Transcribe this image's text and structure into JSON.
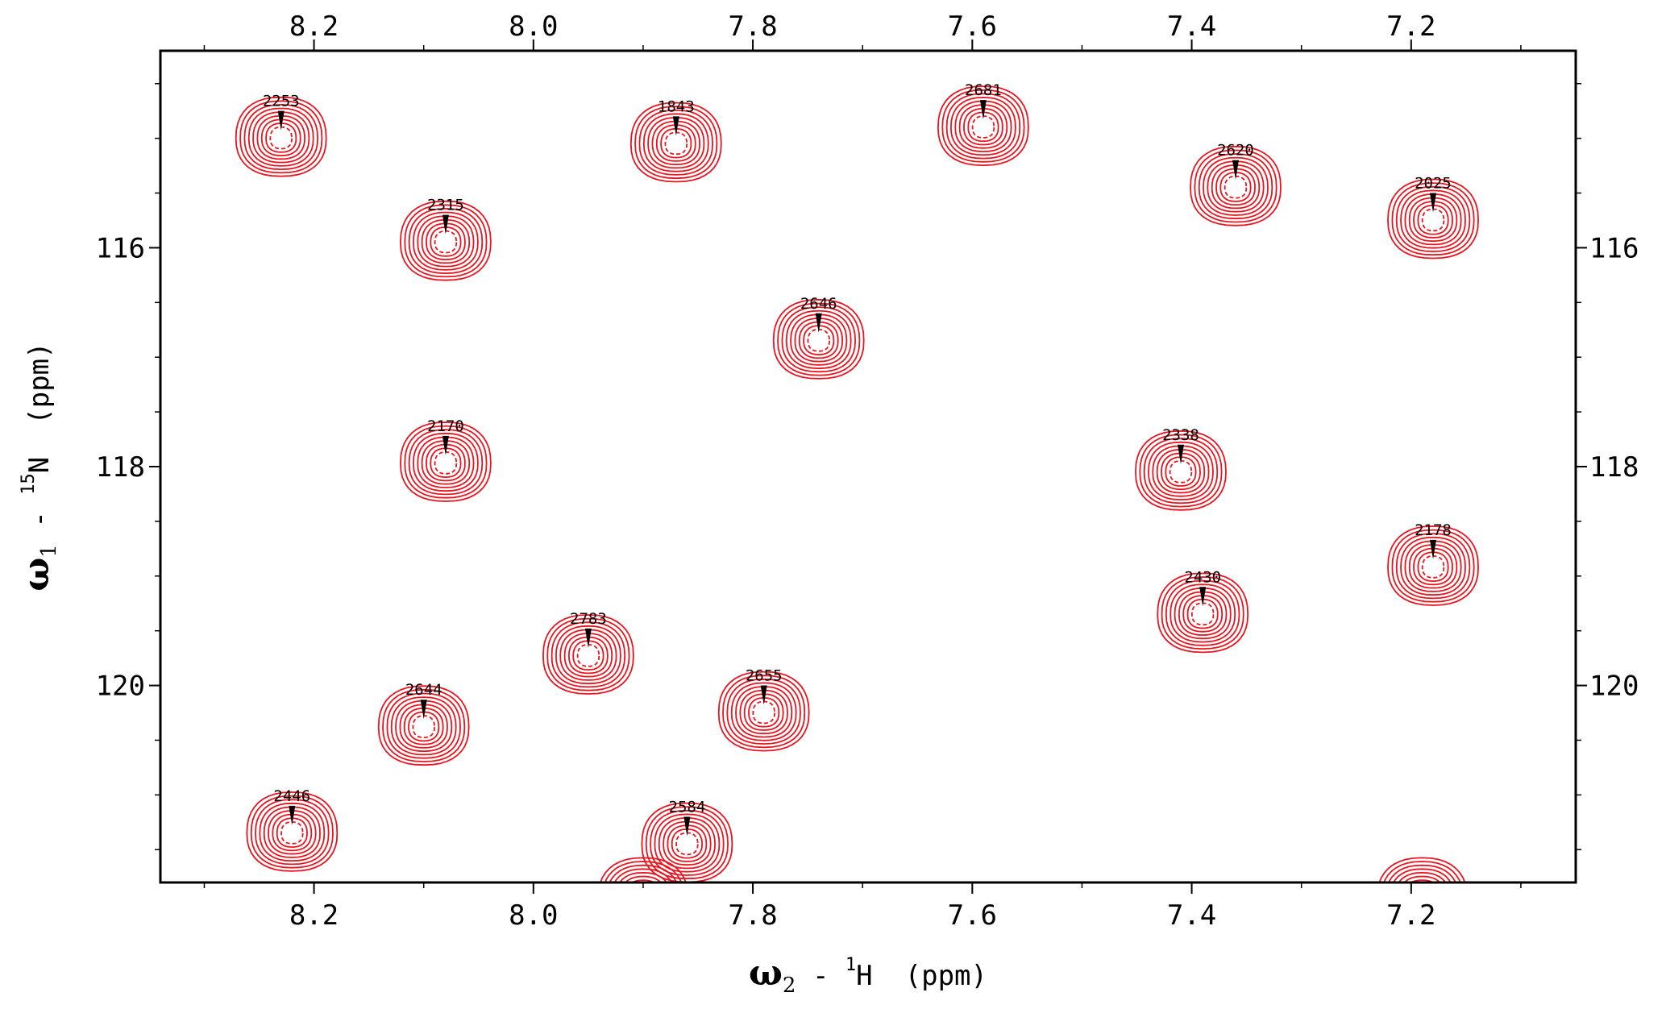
{
  "chart_data": {
    "type": "scatter",
    "subtype": "2D NMR HSQC contour spectrum",
    "x_axis": {
      "greek": "ω",
      "sub": "2",
      "dash": " - ",
      "sup": "1",
      "nucleus": "H",
      "unit": "(ppm)",
      "range": [
        8.34,
        7.05
      ],
      "reversed": true,
      "ticks": [
        8.2,
        8.0,
        7.8,
        7.6,
        7.4,
        7.2
      ],
      "tick_labels": [
        "8.2",
        "8.0",
        "7.8",
        "7.6",
        "7.4",
        "7.2"
      ]
    },
    "y_axis": {
      "greek": "ω",
      "sub": "1",
      "dash": " - ",
      "sup": "15",
      "nucleus": "N",
      "unit": "(ppm)",
      "range": [
        114.2,
        121.8
      ],
      "reversed": true,
      "ticks": [
        116,
        118,
        120
      ],
      "tick_labels": [
        "116",
        "118",
        "120"
      ]
    },
    "contour_color": "#e8141e",
    "peaks": [
      {
        "label": "2253",
        "x": 8.23,
        "y": 115.0
      },
      {
        "label": "1843",
        "x": 7.87,
        "y": 115.05
      },
      {
        "label": "2681",
        "x": 7.59,
        "y": 114.9
      },
      {
        "label": "2620",
        "x": 7.36,
        "y": 115.45
      },
      {
        "label": "2025",
        "x": 7.18,
        "y": 115.75
      },
      {
        "label": "2315",
        "x": 8.08,
        "y": 115.95
      },
      {
        "label": "2646",
        "x": 7.74,
        "y": 116.85
      },
      {
        "label": "2170",
        "x": 8.08,
        "y": 117.97
      },
      {
        "label": "2338",
        "x": 7.41,
        "y": 118.05
      },
      {
        "label": "2178",
        "x": 7.18,
        "y": 118.92
      },
      {
        "label": "2430",
        "x": 7.39,
        "y": 119.35
      },
      {
        "label": "2783",
        "x": 7.95,
        "y": 119.73
      },
      {
        "label": "2655",
        "x": 7.79,
        "y": 120.25
      },
      {
        "label": "2644",
        "x": 8.1,
        "y": 120.38
      },
      {
        "label": "2446",
        "x": 8.22,
        "y": 121.35
      },
      {
        "label": "2584",
        "x": 7.86,
        "y": 121.45
      }
    ],
    "partial_peaks": [
      {
        "x": 7.9,
        "y": 121.95
      },
      {
        "x": 7.19,
        "y": 121.95
      }
    ]
  }
}
